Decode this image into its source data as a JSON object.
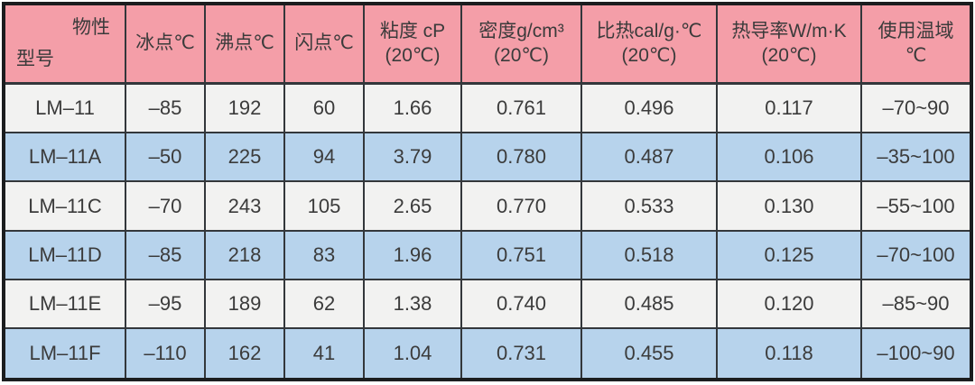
{
  "colors": {
    "header_bg": "#F49EA8",
    "row_light": "#F2F2F1",
    "row_blue": "#B7D3EC",
    "grid_line": "#33373B",
    "outer_border": "#1B1D1F",
    "text": "#3B3B3B",
    "page_bg": "#FFFFFF"
  },
  "table": {
    "header": {
      "diagonal": {
        "top_right": "物性",
        "bottom_left": "型号"
      },
      "columns": [
        {
          "line1": "冰点℃",
          "line2": ""
        },
        {
          "line1": "沸点℃",
          "line2": ""
        },
        {
          "line1": "闪点℃",
          "line2": ""
        },
        {
          "line1": "粘度 cP",
          "line2": "(20℃)"
        },
        {
          "line1": "密度g/cm³",
          "line2": "(20℃)"
        },
        {
          "line1": "比热cal/g·℃",
          "line2": "(20℃)"
        },
        {
          "line1": "热导率W/m·K",
          "line2": "(20℃)"
        },
        {
          "line1": "使用温域",
          "line2": "℃"
        }
      ]
    },
    "rows": [
      {
        "model": "LM–11",
        "values": [
          "–85",
          "192",
          "60",
          "1.66",
          "0.761",
          "0.496",
          "0.117",
          "–70~90"
        ]
      },
      {
        "model": "LM–11A",
        "values": [
          "–50",
          "225",
          "94",
          "3.79",
          "0.780",
          "0.487",
          "0.106",
          "–35~100"
        ]
      },
      {
        "model": "LM–11C",
        "values": [
          "–70",
          "243",
          "105",
          "2.65",
          "0.770",
          "0.533",
          "0.130",
          "–55~100"
        ]
      },
      {
        "model": "LM–11D",
        "values": [
          "–85",
          "218",
          "83",
          "1.96",
          "0.751",
          "0.518",
          "0.125",
          "–70~100"
        ]
      },
      {
        "model": "LM–11E",
        "values": [
          "–95",
          "189",
          "62",
          "1.38",
          "0.740",
          "0.485",
          "0.120",
          "–85~90"
        ]
      },
      {
        "model": "LM–11F",
        "values": [
          "–110",
          "162",
          "41",
          "1.04",
          "0.731",
          "0.455",
          "0.118",
          "–100~90"
        ]
      }
    ]
  },
  "chart_data": {
    "type": "table",
    "columns": [
      "型号/物性",
      "冰点℃",
      "沸点℃",
      "闪点℃",
      "粘度 cP (20℃)",
      "密度g/cm³ (20℃)",
      "比热cal/g·℃ (20℃)",
      "热导率W/m·K (20℃)",
      "使用温域 ℃"
    ],
    "rows": [
      [
        "LM-11",
        -85,
        192,
        60,
        1.66,
        0.761,
        0.496,
        0.117,
        "-70~90"
      ],
      [
        "LM-11A",
        -50,
        225,
        94,
        3.79,
        0.78,
        0.487,
        0.106,
        "-35~100"
      ],
      [
        "LM-11C",
        -70,
        243,
        105,
        2.65,
        0.77,
        0.533,
        0.13,
        "-55~100"
      ],
      [
        "LM-11D",
        -85,
        218,
        83,
        1.96,
        0.751,
        0.518,
        0.125,
        "-70~100"
      ],
      [
        "LM-11E",
        -95,
        189,
        62,
        1.38,
        0.74,
        0.485,
        0.12,
        "-85~90"
      ],
      [
        "LM-11F",
        -110,
        162,
        41,
        1.04,
        0.731,
        0.455,
        0.118,
        "-100~90"
      ]
    ]
  }
}
